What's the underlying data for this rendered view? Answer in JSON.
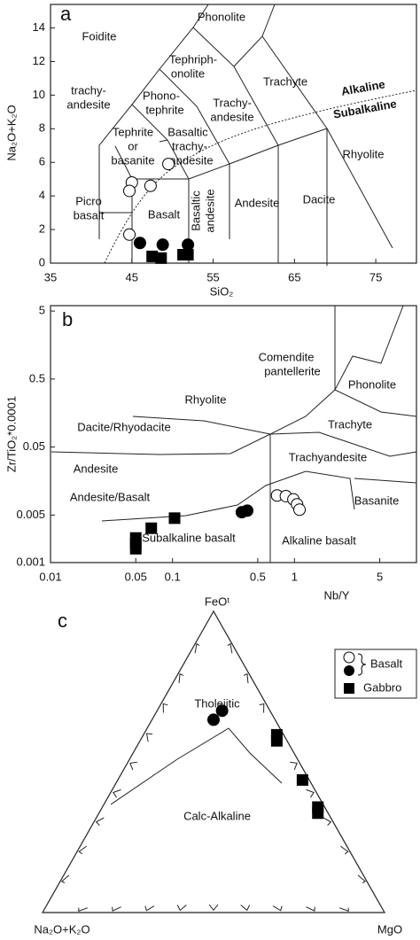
{
  "chart_data": [
    {
      "type": "scatter",
      "panel": "a",
      "xlabel": "SiO₂",
      "ylabel": "Na₂O+K₂O",
      "xlim": [
        35,
        80
      ],
      "ylim": [
        0,
        15.4
      ],
      "xticks": [
        35,
        45,
        55,
        65,
        75
      ],
      "yticks": [
        0,
        2,
        4,
        6,
        8,
        10,
        12,
        14
      ],
      "field_labels": [
        "Foidite",
        "Phonolite",
        "Tephriph-",
        "onolite",
        "Trachyte",
        "trachy-",
        "andesite",
        "Phono-",
        "tephrite",
        "Trachy-",
        "andesite",
        "Tephrite",
        "or",
        "basanite",
        "Basaltic",
        "trachy-",
        "andesite",
        "Rhyolite",
        "Alkaline",
        "Subalkaline",
        "Picro",
        "basalt",
        "Basalt",
        "Basaltic",
        "andesite",
        "Andesite",
        "Dacite"
      ],
      "series": [
        {
          "marker": "circle-open",
          "color": "#000000",
          "x": [
            45.0,
            44.7,
            47.3,
            49.5,
            44.7
          ],
          "values": [
            4.8,
            4.3,
            4.6,
            5.9,
            1.7
          ]
        },
        {
          "marker": "circle",
          "color": "#000000",
          "x": [
            46.0,
            48.8,
            51.9
          ],
          "values": [
            1.2,
            1.1,
            1.1
          ]
        },
        {
          "marker": "square",
          "color": "#000000",
          "x": [
            47.5,
            48.6,
            51.3,
            51.9
          ],
          "values": [
            0.4,
            0.3,
            0.5,
            0.5
          ]
        }
      ]
    },
    {
      "type": "scatter",
      "panel": "b",
      "xlabel": "Nb/Y",
      "ylabel": "Zr/TiO₂*0.0001",
      "log_x": true,
      "log_y": true,
      "xlim": [
        0.01,
        10
      ],
      "ylim": [
        0.001,
        6
      ],
      "xticks": [
        0.01,
        0.05,
        0.1,
        0.5,
        1,
        5
      ],
      "yticks": [
        0.001,
        0.005,
        0.05,
        0.5,
        5
      ],
      "field_labels": [
        "Comendite",
        "pantellerite",
        "Phonolite",
        "Rhyolite",
        "Trachyte",
        "Dacite/Rhyodacite",
        "Trachyandesite",
        "Andesite",
        "Basanite",
        "Andesite/Basalt",
        "Subalkaline basalt",
        "Alkaline basalt"
      ],
      "series": [
        {
          "marker": "circle-open",
          "color": "#000000",
          "x": [
            0.72,
            0.85,
            0.98,
            1.05,
            1.1
          ],
          "values": [
            0.0097,
            0.0095,
            0.0085,
            0.0072,
            0.006
          ]
        },
        {
          "marker": "circle",
          "color": "#000000",
          "x": [
            0.37,
            0.41
          ],
          "values": [
            0.0055,
            0.0058
          ]
        },
        {
          "marker": "square",
          "color": "#000000",
          "x": [
            0.05,
            0.05,
            0.05,
            0.067,
            0.104
          ],
          "values": [
            0.0023,
            0.0016,
            0.0019,
            0.0032,
            0.0045
          ]
        }
      ]
    },
    {
      "type": "ternary",
      "panel": "c",
      "top_label": "FeOᵗ",
      "left_label": "Na₂O+K₂O",
      "right_label": "MgO",
      "ticks": [
        10,
        20,
        30,
        40,
        50,
        60,
        70,
        80,
        90
      ],
      "field_labels": [
        "Tholeiitic",
        "Calc-Alkaline"
      ],
      "series": [
        {
          "name": "Basalt",
          "marker": "circle",
          "color": "#000000",
          "top": [
            64,
            67
          ],
          "left": [
            18,
            14
          ],
          "right": [
            18,
            19
          ]
        },
        {
          "name": "Gabbro",
          "marker": "square",
          "color": "#000000",
          "top": [
            59,
            57,
            44,
            35,
            33
          ],
          "left": [
            2,
            3,
            2,
            2,
            3
          ],
          "right": [
            39,
            40,
            54,
            63,
            64
          ]
        }
      ]
    }
  ]
}
